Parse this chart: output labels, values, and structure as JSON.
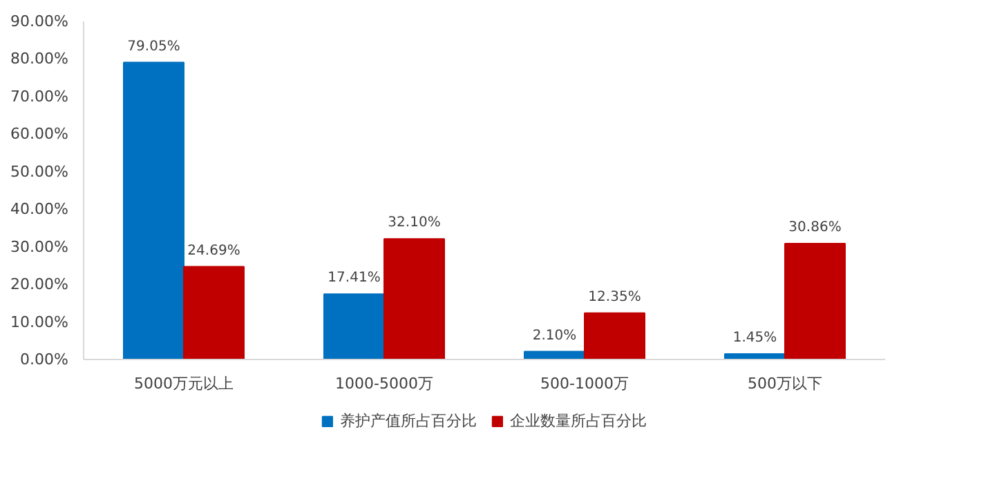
{
  "chart_data": {
    "type": "bar",
    "categories": [
      "5000万元以上",
      "1000-5000万",
      "500-1000万",
      "500万以下"
    ],
    "series": [
      {
        "name": "养护产值所占百分比",
        "color": "#0070c0",
        "values": [
          79.05,
          17.41,
          2.1,
          1.45
        ],
        "value_labels": [
          "79.05%",
          "17.41%",
          "2.10%",
          "1.45%"
        ]
      },
      {
        "name": "企业数量所占百分比",
        "color": "#c00000",
        "values": [
          24.69,
          32.1,
          12.35,
          30.86
        ],
        "value_labels": [
          "24.69%",
          "32.10%",
          "12.35%",
          "30.86%"
        ]
      }
    ],
    "ylim": [
      0,
      90
    ],
    "yticks": [
      {
        "value": 0,
        "label": "0.00%"
      },
      {
        "value": 10,
        "label": "10.00%"
      },
      {
        "value": 20,
        "label": "20.00%"
      },
      {
        "value": 30,
        "label": "30.00%"
      },
      {
        "value": 40,
        "label": "40.00%"
      },
      {
        "value": 50,
        "label": "50.00%"
      },
      {
        "value": 60,
        "label": "60.00%"
      },
      {
        "value": 70,
        "label": "70.00%"
      },
      {
        "value": 80,
        "label": "80.00%"
      },
      {
        "value": 90,
        "label": "90.00%"
      }
    ],
    "grid": false,
    "legend": "bottom"
  }
}
